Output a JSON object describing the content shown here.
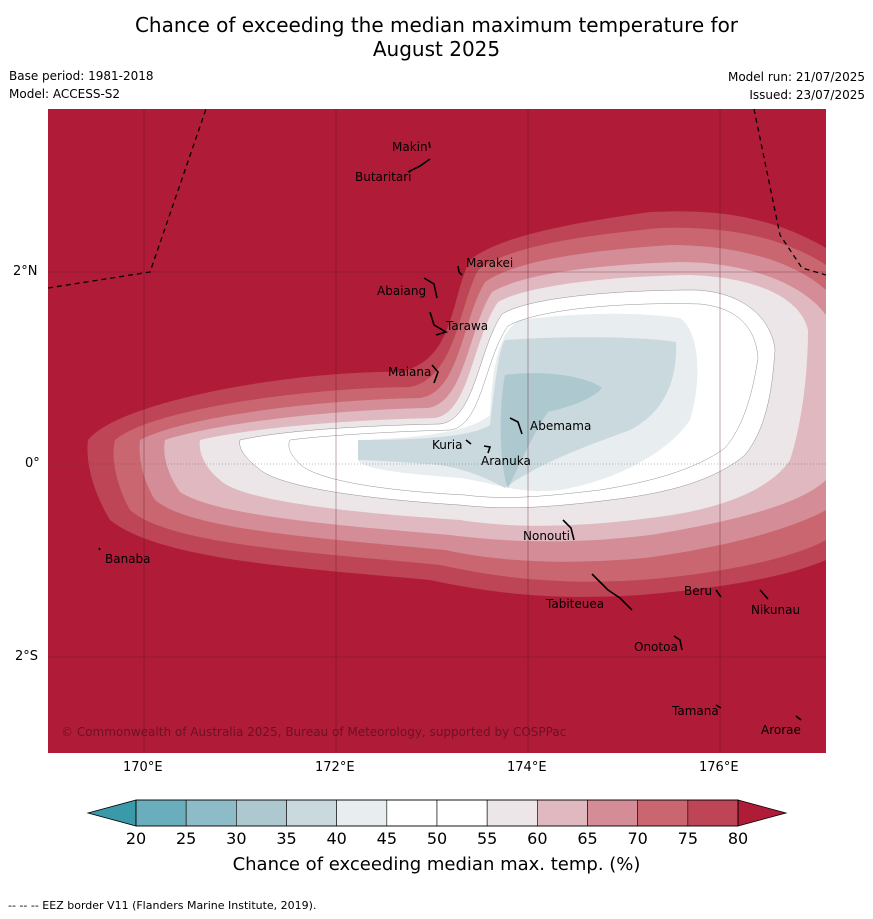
{
  "header": {
    "title_line1": "Chance of exceeding the median maximum temperature for",
    "title_line2": "August 2025",
    "base_period": "Base period: 1981-2018",
    "model": "Model: ACCESS-S2",
    "model_run": "Model run: 21/07/2025",
    "issued": "Issued: 23/07/2025"
  },
  "map": {
    "x_ticks": [
      "170°E",
      "172°E",
      "174°E",
      "176°E"
    ],
    "y_ticks": [
      "2°N",
      "0°",
      "2°S"
    ],
    "copyright": "© Commonwealth of Australia 2025, Bureau of Meteorology, supported by COSPPac",
    "islands": [
      "Makin",
      "Butaritari",
      "Marakei",
      "Abaiang",
      "Tarawa",
      "Maiana",
      "Abemama",
      "Kuria",
      "Aranuka",
      "Nonouti",
      "Banaba",
      "Tabiteuea",
      "Beru",
      "Nikunau",
      "Onotoa",
      "Tamana",
      "Arorae"
    ],
    "background_color": "#b01c38"
  },
  "colorbar": {
    "ticks": [
      "20",
      "25",
      "30",
      "35",
      "40",
      "45",
      "50",
      "55",
      "60",
      "65",
      "70",
      "75",
      "80"
    ],
    "colors": [
      "#3a9aa9",
      "#6aaebd",
      "#8dbcc8",
      "#adc8cf",
      "#cad9de",
      "#e8edf0",
      "#ffffff",
      "#ffffff",
      "#ece6e8",
      "#e0b8bf",
      "#d48c96",
      "#c9666f",
      "#be4555",
      "#b01c38"
    ],
    "label": "Chance of exceeding median max. temp. (%)"
  },
  "footnote": "--  --  -- EEZ border V11 (Flanders Marine Institute, 2019)."
}
